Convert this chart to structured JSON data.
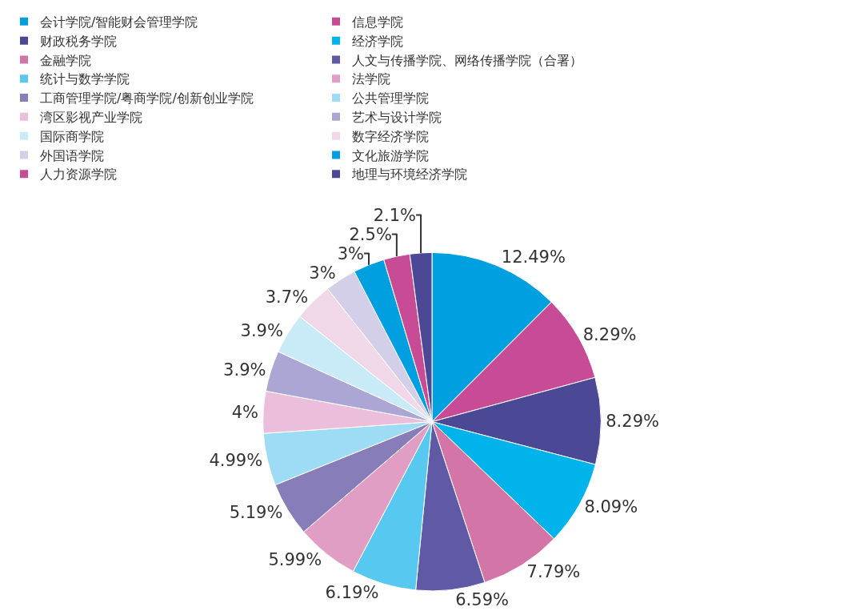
{
  "chart_data": {
    "type": "pie",
    "categories": [
      "会计学院/智能财会管理学院",
      "信息学院",
      "财政税务学院",
      "经济学院",
      "金融学院",
      "人文与传播学院、网络传播学院（合署）",
      "统计与数学学院",
      "法学院",
      "工商管理学院/粤商学院/创新创业学院",
      "公共管理学院",
      "湾区影视产业学院",
      "艺术与设计学院",
      "国际商学院",
      "数字经济学院",
      "外国语学院",
      "文化旅游学院",
      "人力资源学院",
      "地理与环境经济学院"
    ],
    "values": [
      12.49,
      8.29,
      8.29,
      8.09,
      7.79,
      6.59,
      6.19,
      5.99,
      5.19,
      4.99,
      4,
      3.9,
      3.9,
      3.7,
      3,
      3,
      2.5,
      2.1
    ],
    "value_labels": [
      "12.49%",
      "8.29%",
      "8.29%",
      "8.09%",
      "7.79%",
      "6.59%",
      "6.19%",
      "5.99%",
      "5.19%",
      "4.99%",
      "4%",
      "3.9%",
      "3.9%",
      "3.7%",
      "3%",
      "3%",
      "2.5%",
      "2.1%"
    ],
    "colors": [
      "#00a0e0",
      "#c84b96",
      "#4b4896",
      "#00b4eb",
      "#d475a8",
      "#6059a5",
      "#57c8f0",
      "#e19ec4",
      "#877db8",
      "#9edcf5",
      "#ebbedb",
      "#aba6d3",
      "#c8ebf7",
      "#f0d8e9",
      "#d3cfe8",
      "#00a0e0",
      "#c84b96",
      "#4b4896"
    ],
    "legend": "top"
  }
}
